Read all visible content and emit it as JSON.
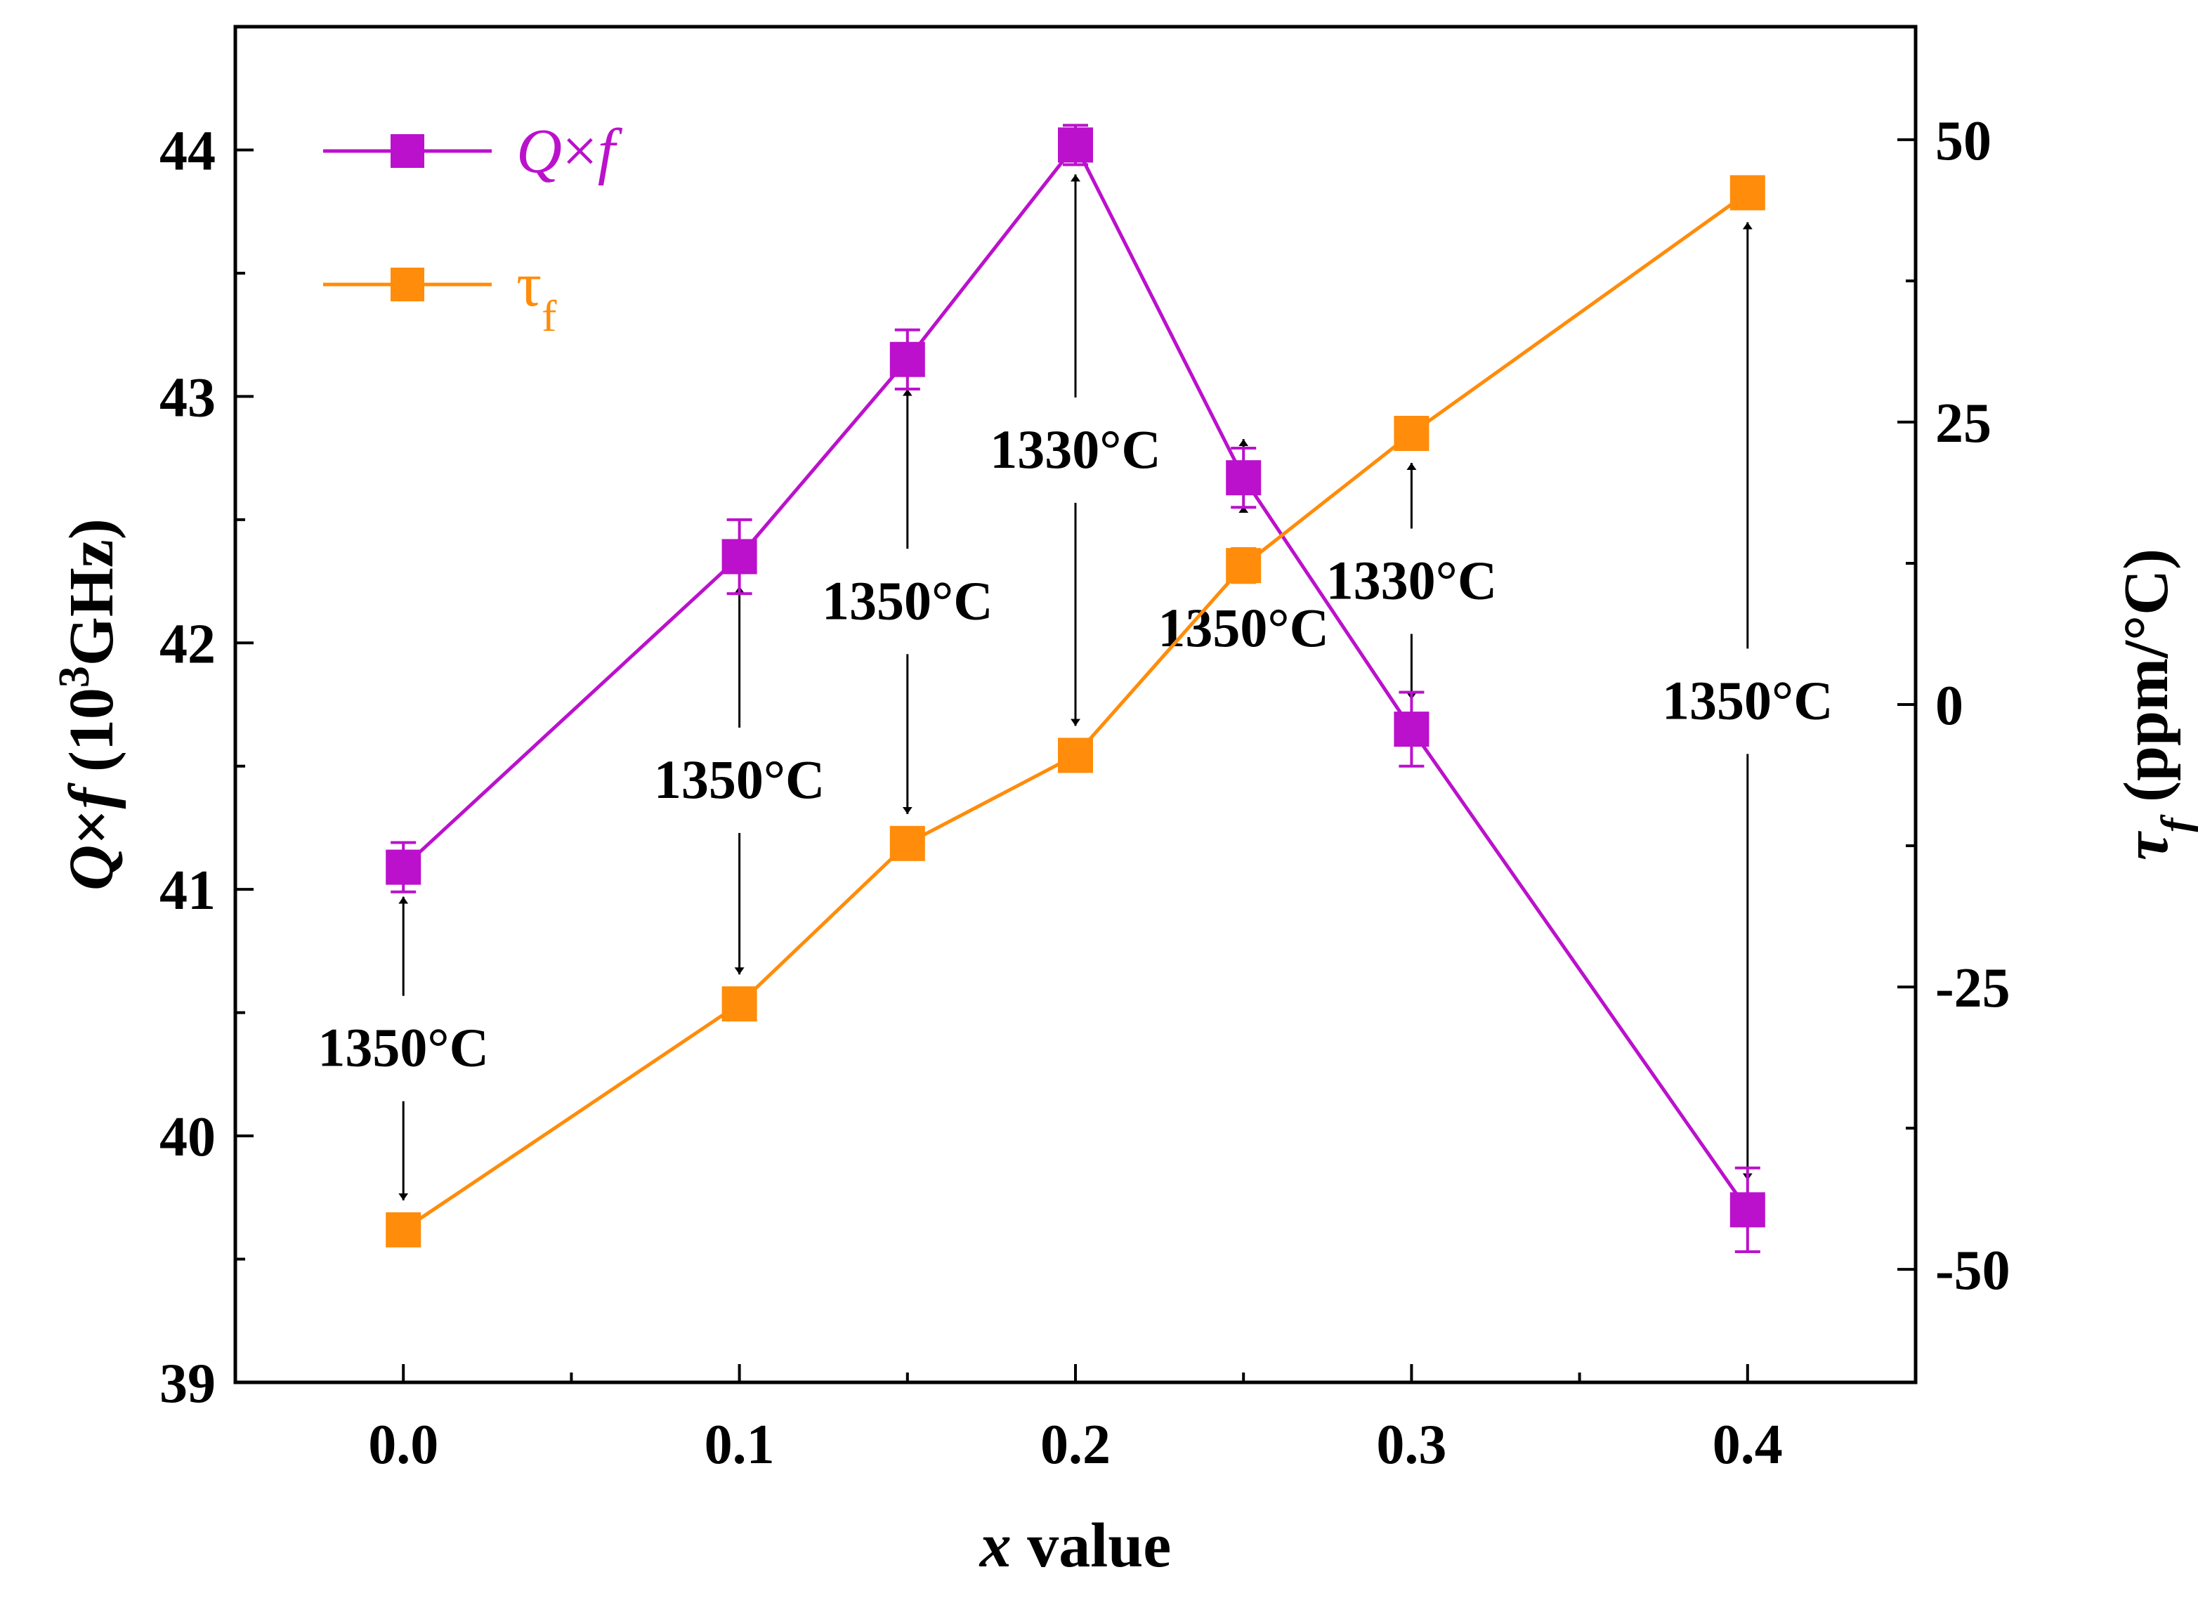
{
  "chart_data": {
    "type": "line",
    "title": "",
    "xlabel": {
      "var": "x",
      "rest": " value"
    },
    "ylabel_left": {
      "var": "Q",
      "times": "×",
      "f": "f",
      "base": "(10",
      "sup": "3",
      "unit": "GHz)"
    },
    "ylabel_right": {
      "var": "τ",
      "sub": "f",
      "unit": "(ppm/°C)"
    },
    "xlim": [
      -0.05,
      0.45
    ],
    "ylim_left": [
      39,
      44.5
    ],
    "ylim_right": [
      -60,
      60
    ],
    "xticks": [
      "0.0",
      "0.1",
      "0.2",
      "0.3",
      "0.4"
    ],
    "xtick_values": [
      0.0,
      0.1,
      0.2,
      0.3,
      0.4
    ],
    "yticks_left": [
      "39",
      "40",
      "41",
      "42",
      "43",
      "44"
    ],
    "ytick_values_left": [
      39,
      40,
      41,
      42,
      43,
      44
    ],
    "yticks_right": [
      "-50",
      "-25",
      "0",
      "25",
      "50"
    ],
    "ytick_values_right": [
      -50,
      -25,
      0,
      25,
      50
    ],
    "legend_position": "top-left",
    "series": [
      {
        "name": "Q×f",
        "axis": "left",
        "color": "#bb11cc",
        "x": [
          0.0,
          0.1,
          0.15,
          0.2,
          0.25,
          0.3,
          0.4
        ],
        "values": [
          41.09,
          42.35,
          43.15,
          44.02,
          42.67,
          41.65,
          39.7
        ],
        "errors": [
          0.1,
          0.15,
          0.12,
          0.08,
          0.12,
          0.15,
          0.17
        ]
      },
      {
        "name": "τf",
        "axis": "right",
        "color": "#ff8c0a",
        "x": [
          0.0,
          0.1,
          0.15,
          0.2,
          0.25,
          0.3,
          0.4
        ],
        "values": [
          -46.5,
          -26.5,
          -12.3,
          -4.5,
          12.3,
          24.0,
          45.3
        ],
        "errors": [
          1.0,
          1.2,
          1.1,
          1.1,
          1.5,
          1.2,
          1.3
        ]
      }
    ],
    "annotations": [
      {
        "text": "1350°C",
        "x": 0.0,
        "pos": "between"
      },
      {
        "text": "1350°C",
        "x": 0.1,
        "pos": "between"
      },
      {
        "text": "1350°C",
        "x": 0.15,
        "pos": "between"
      },
      {
        "text": "1330°C",
        "x": 0.2,
        "pos": "between"
      },
      {
        "text": "1350°C",
        "x": 0.25,
        "pos": "below"
      },
      {
        "text": "1330°C",
        "x": 0.3,
        "pos": "between"
      },
      {
        "text": "1350°C",
        "x": 0.4,
        "pos": "between"
      }
    ]
  }
}
